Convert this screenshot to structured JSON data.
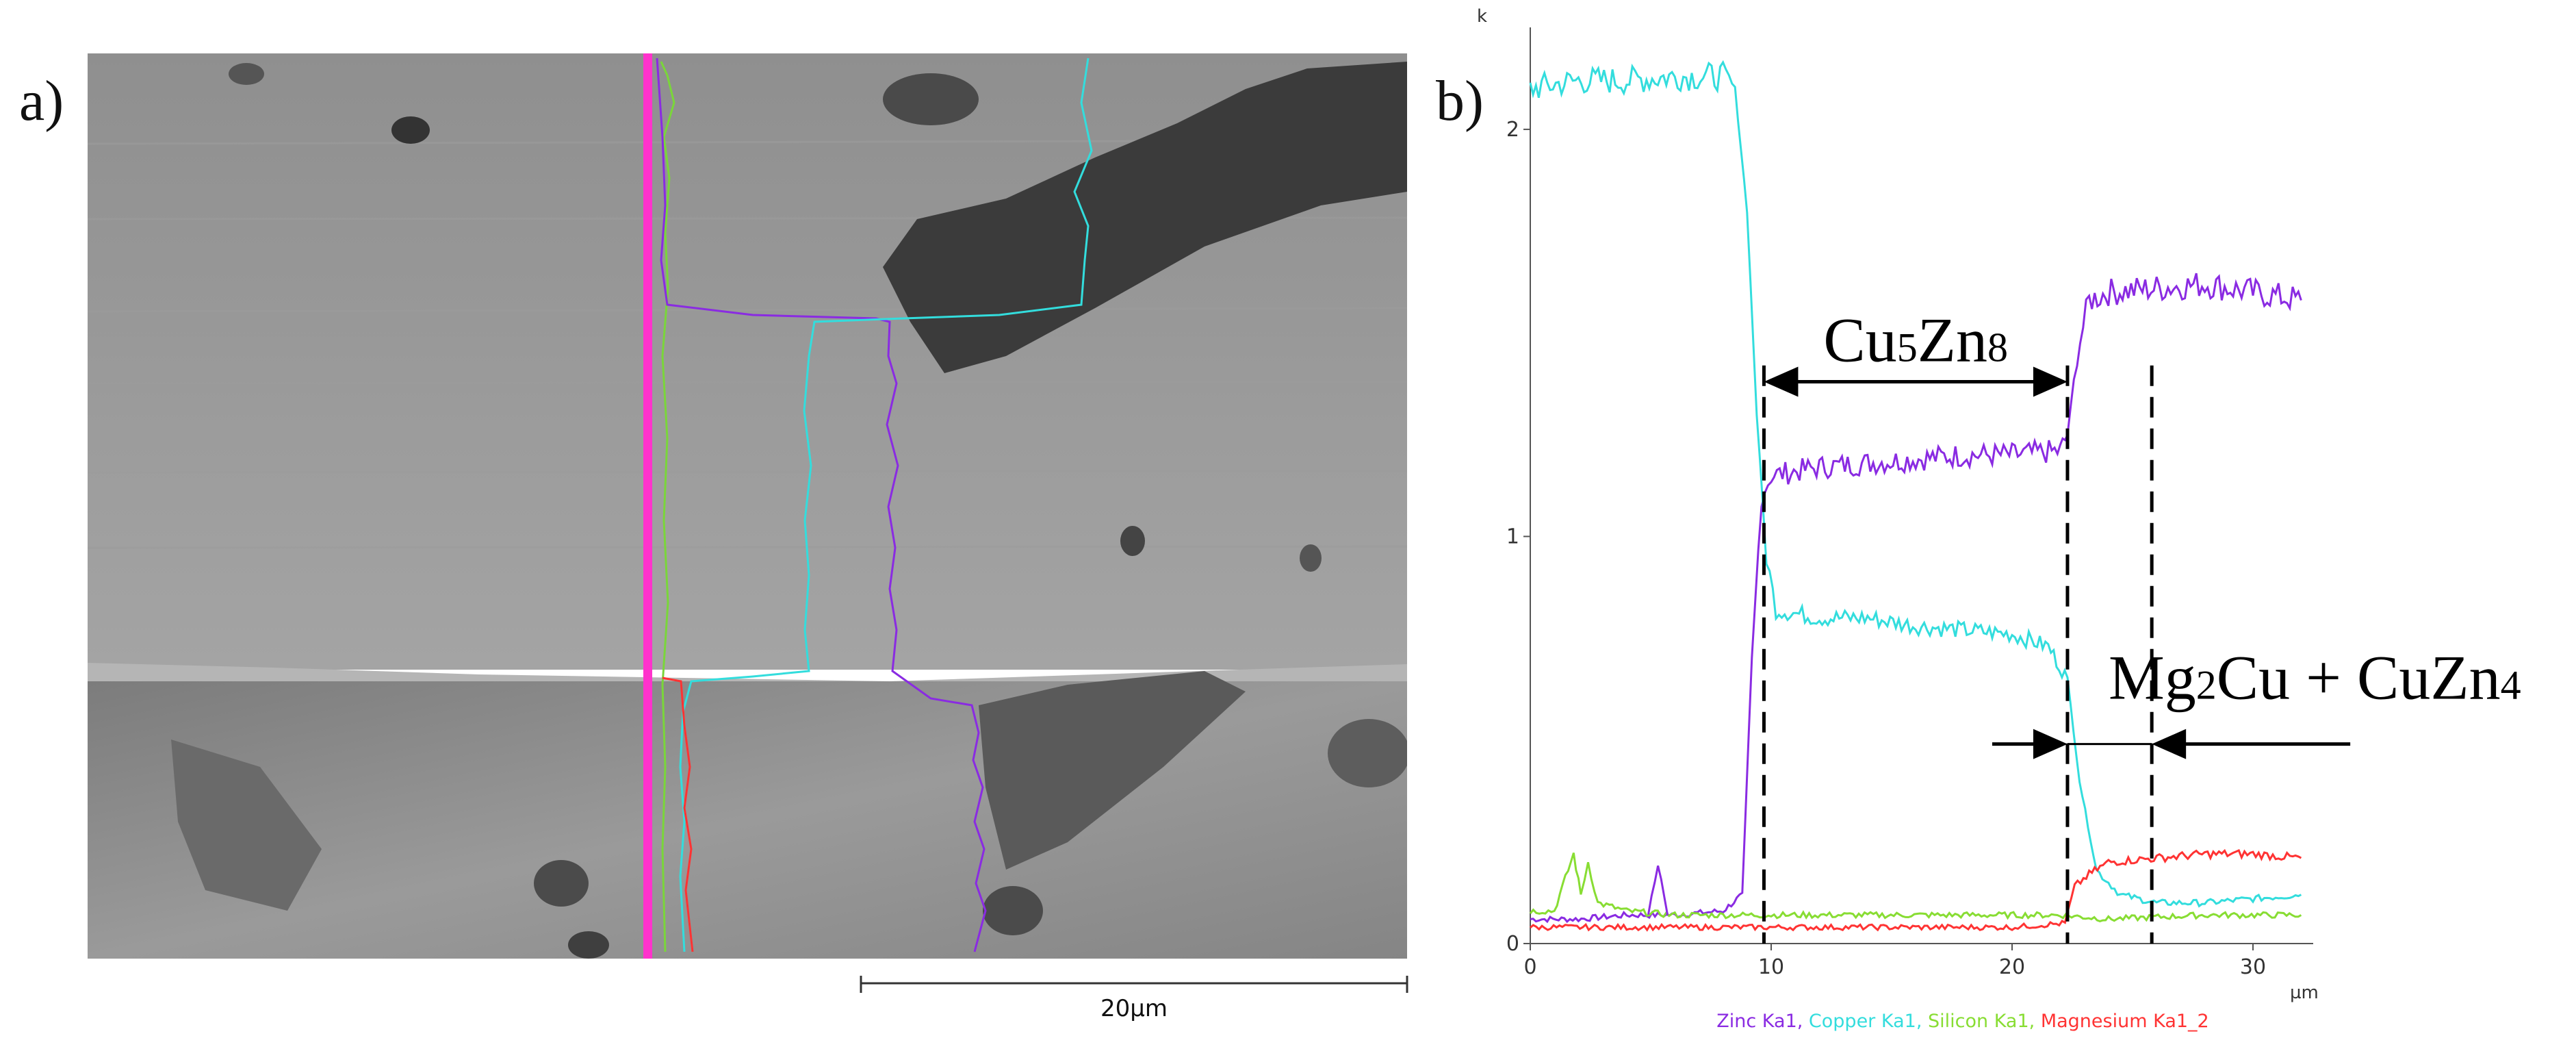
{
  "panel_a": {
    "label": "a)",
    "scale_bar_label": "20µm"
  },
  "panel_b": {
    "label": "b)"
  },
  "chart_data": {
    "type": "line",
    "y_unit": "k",
    "x_unit": "µm",
    "xlim": [
      0,
      32.5
    ],
    "ylim": [
      0,
      2.2
    ],
    "x_ticks": [
      "0",
      "10",
      "20",
      "30"
    ],
    "y_ticks": [
      "0",
      "1",
      "2"
    ],
    "grid": false,
    "legend_position": "bottom",
    "series": [
      {
        "name": "Zinc Ka1",
        "color": "#8a2be2",
        "x": [
          0,
          2,
          4,
          6,
          8,
          8.8,
          9.2,
          9.6,
          10,
          12,
          14,
          16,
          18,
          20,
          22,
          22.3,
          22.7,
          23.2,
          24,
          26,
          28,
          30,
          32
        ],
        "y": [
          0.06,
          0.06,
          0.07,
          0.07,
          0.08,
          0.12,
          0.7,
          1.1,
          1.15,
          1.17,
          1.18,
          1.19,
          1.2,
          1.2,
          1.21,
          1.25,
          1.45,
          1.58,
          1.6,
          1.61,
          1.62,
          1.6,
          1.58
        ]
      },
      {
        "name": "Copper Ka1",
        "color": "#33dddd",
        "x": [
          0,
          2,
          4,
          6,
          8,
          8.5,
          9,
          9.4,
          9.8,
          10.2,
          12,
          14,
          16,
          18,
          20,
          21.5,
          22.3,
          22.8,
          23.5,
          24.5,
          26,
          28,
          30,
          32
        ],
        "y": [
          2.1,
          2.12,
          2.12,
          2.13,
          2.13,
          2.1,
          1.8,
          1.3,
          0.95,
          0.82,
          0.8,
          0.8,
          0.78,
          0.77,
          0.76,
          0.73,
          0.65,
          0.4,
          0.18,
          0.12,
          0.1,
          0.1,
          0.11,
          0.12
        ]
      },
      {
        "name": "Silicon Ka1",
        "color": "#88dd33",
        "x": [
          0,
          1,
          1.8,
          2.1,
          2.4,
          2.8,
          4,
          6,
          8,
          10,
          14,
          18,
          22,
          24,
          28,
          32
        ],
        "y": [
          0.08,
          0.08,
          0.22,
          0.12,
          0.2,
          0.1,
          0.08,
          0.07,
          0.07,
          0.07,
          0.07,
          0.07,
          0.07,
          0.06,
          0.07,
          0.07
        ]
      },
      {
        "name": "Magnesium Ka1_2",
        "color": "#ff3333",
        "x": [
          0,
          4,
          8,
          12,
          16,
          20,
          22.2,
          22.6,
          23.2,
          24,
          26,
          28,
          30,
          32
        ],
        "y": [
          0.04,
          0.04,
          0.04,
          0.04,
          0.04,
          0.04,
          0.05,
          0.14,
          0.17,
          0.2,
          0.21,
          0.22,
          0.22,
          0.21
        ]
      },
      {
        "name": "Zinc Ka1 spike",
        "color": "#8a2be2",
        "x": [
          4.9,
          5.3,
          5.7
        ],
        "y": [
          0.07,
          0.19,
          0.07
        ]
      }
    ],
    "annotations": [
      {
        "id": "cu5zn8",
        "text_main": "Cu",
        "sub1": "5",
        "text_mid": "Zn",
        "sub2": "8",
        "x_from": 9.7,
        "x_to": 22.3,
        "y": 1.38
      },
      {
        "id": "mg2cu",
        "text_main": "Mg",
        "sub1": "2",
        "text_mid": "Cu + CuZn",
        "sub2": "4",
        "x_left": 22.3,
        "x_right": 25.8,
        "y": 0.49
      }
    ],
    "dashed_lines_x": [
      9.7,
      22.3,
      25.8
    ]
  }
}
